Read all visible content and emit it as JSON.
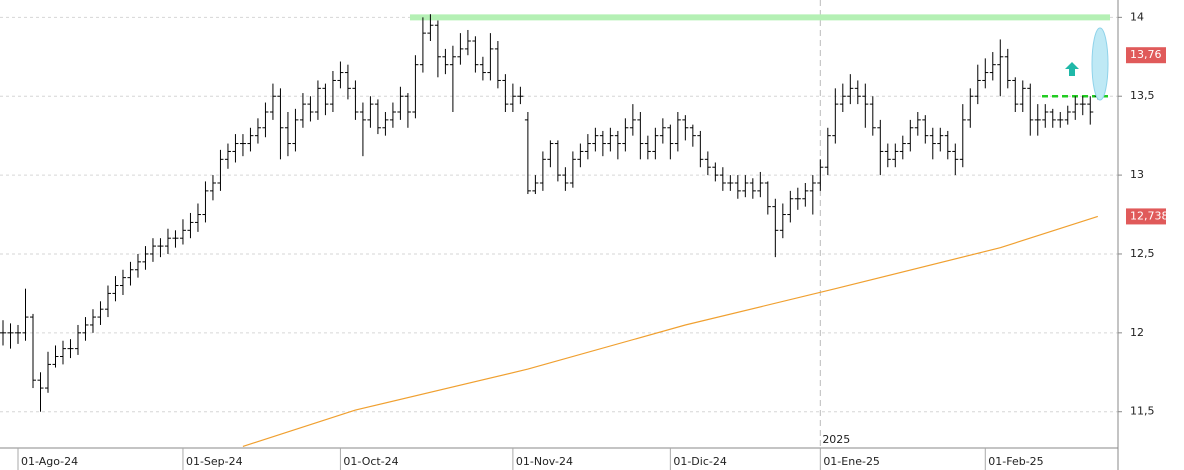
{
  "chart_data": {
    "type": "ohlc",
    "series": [
      {
        "color": "#000000",
        "values": [
          [
            12.0,
            12.08,
            11.92,
            12.0
          ],
          [
            12.0,
            12.06,
            11.9,
            12.0
          ],
          [
            12.0,
            12.05,
            11.93,
            12.0
          ],
          [
            12.0,
            12.28,
            11.95,
            12.1
          ],
          [
            12.1,
            12.12,
            11.65,
            11.7
          ],
          [
            11.7,
            11.75,
            11.5,
            11.65
          ],
          [
            11.65,
            11.88,
            11.62,
            11.8
          ],
          [
            11.8,
            11.92,
            11.78,
            11.85
          ],
          [
            11.85,
            11.95,
            11.8,
            11.9
          ],
          [
            11.9,
            11.96,
            11.84,
            11.9
          ],
          [
            11.9,
            12.05,
            11.86,
            12.0
          ],
          [
            12.0,
            12.1,
            11.95,
            12.05
          ],
          [
            12.05,
            12.15,
            12.0,
            12.1
          ],
          [
            12.1,
            12.2,
            12.05,
            12.15
          ],
          [
            12.15,
            12.3,
            12.1,
            12.25
          ],
          [
            12.25,
            12.36,
            12.2,
            12.3
          ],
          [
            12.3,
            12.4,
            12.24,
            12.35
          ],
          [
            12.35,
            12.45,
            12.3,
            12.4
          ],
          [
            12.4,
            12.5,
            12.35,
            12.45
          ],
          [
            12.45,
            12.55,
            12.4,
            12.5
          ],
          [
            12.5,
            12.6,
            12.45,
            12.55
          ],
          [
            12.55,
            12.6,
            12.48,
            12.55
          ],
          [
            12.55,
            12.66,
            12.5,
            12.6
          ],
          [
            12.6,
            12.65,
            12.54,
            12.6
          ],
          [
            12.6,
            12.72,
            12.56,
            12.65
          ],
          [
            12.65,
            12.76,
            12.6,
            12.7
          ],
          [
            12.7,
            12.82,
            12.64,
            12.75
          ],
          [
            12.75,
            12.96,
            12.7,
            12.9
          ],
          [
            12.9,
            13.0,
            12.84,
            12.95
          ],
          [
            12.95,
            13.16,
            12.9,
            13.1
          ],
          [
            13.1,
            13.2,
            13.04,
            13.15
          ],
          [
            13.15,
            13.26,
            13.08,
            13.2
          ],
          [
            13.2,
            13.26,
            13.12,
            13.2
          ],
          [
            13.2,
            13.3,
            13.15,
            13.25
          ],
          [
            13.25,
            13.36,
            13.2,
            13.3
          ],
          [
            13.3,
            13.46,
            13.24,
            13.4
          ],
          [
            13.4,
            13.58,
            13.35,
            13.5
          ],
          [
            13.5,
            13.55,
            13.1,
            13.3
          ],
          [
            13.3,
            13.4,
            13.12,
            13.2
          ],
          [
            13.2,
            13.42,
            13.15,
            13.35
          ],
          [
            13.35,
            13.52,
            13.3,
            13.45
          ],
          [
            13.45,
            13.5,
            13.34,
            13.4
          ],
          [
            13.4,
            13.6,
            13.35,
            13.55
          ],
          [
            13.55,
            13.58,
            13.38,
            13.45
          ],
          [
            13.45,
            13.66,
            13.4,
            13.6
          ],
          [
            13.6,
            13.72,
            13.55,
            13.65
          ],
          [
            13.65,
            13.7,
            13.48,
            13.55
          ],
          [
            13.55,
            13.6,
            13.35,
            13.4
          ],
          [
            13.4,
            13.46,
            13.12,
            13.35
          ],
          [
            13.35,
            13.5,
            13.3,
            13.45
          ],
          [
            13.45,
            13.48,
            13.26,
            13.3
          ],
          [
            13.3,
            13.4,
            13.25,
            13.35
          ],
          [
            13.35,
            13.46,
            13.3,
            13.4
          ],
          [
            13.4,
            13.56,
            13.35,
            13.5
          ],
          [
            13.5,
            13.52,
            13.3,
            13.4
          ],
          [
            13.4,
            13.76,
            13.36,
            13.7
          ],
          [
            13.7,
            14.0,
            13.65,
            13.9
          ],
          [
            13.9,
            14.02,
            13.85,
            13.95
          ],
          [
            13.95,
            13.98,
            13.62,
            13.75
          ],
          [
            13.75,
            13.8,
            13.64,
            13.7
          ],
          [
            13.7,
            13.82,
            13.4,
            13.75
          ],
          [
            13.75,
            13.9,
            13.7,
            13.8
          ],
          [
            13.8,
            13.92,
            13.76,
            13.85
          ],
          [
            13.85,
            13.88,
            13.65,
            13.7
          ],
          [
            13.7,
            13.75,
            13.6,
            13.65
          ],
          [
            13.65,
            13.9,
            13.6,
            13.8
          ],
          [
            13.8,
            13.85,
            13.55,
            13.6
          ],
          [
            13.6,
            13.64,
            13.4,
            13.45
          ],
          [
            13.45,
            13.58,
            13.4,
            13.5
          ],
          [
            13.5,
            13.56,
            13.45,
            13.5
          ],
          [
            13.35,
            13.4,
            12.88,
            12.9
          ],
          [
            12.9,
            13.0,
            12.88,
            12.95
          ],
          [
            12.95,
            13.15,
            12.9,
            13.1
          ],
          [
            13.1,
            13.22,
            13.05,
            13.2
          ],
          [
            13.2,
            13.22,
            12.96,
            13.0
          ],
          [
            13.0,
            13.05,
            12.9,
            12.95
          ],
          [
            12.95,
            13.15,
            12.92,
            13.1
          ],
          [
            13.1,
            13.2,
            13.05,
            13.15
          ],
          [
            13.15,
            13.26,
            13.1,
            13.2
          ],
          [
            13.2,
            13.3,
            13.15,
            13.25
          ],
          [
            13.25,
            13.28,
            13.12,
            13.2
          ],
          [
            13.2,
            13.3,
            13.15,
            13.25
          ],
          [
            13.25,
            13.28,
            13.1,
            13.2
          ],
          [
            13.2,
            13.36,
            13.15,
            13.3
          ],
          [
            13.3,
            13.45,
            13.25,
            13.35
          ],
          [
            13.35,
            13.4,
            13.1,
            13.2
          ],
          [
            13.2,
            13.25,
            13.1,
            13.15
          ],
          [
            13.15,
            13.3,
            13.1,
            13.25
          ],
          [
            13.25,
            13.36,
            13.2,
            13.3
          ],
          [
            13.3,
            13.32,
            13.1,
            13.2
          ],
          [
            13.2,
            13.4,
            13.15,
            13.35
          ],
          [
            13.35,
            13.38,
            13.22,
            13.3
          ],
          [
            13.3,
            13.32,
            13.18,
            13.25
          ],
          [
            13.25,
            13.28,
            13.05,
            13.1
          ],
          [
            13.1,
            13.15,
            13.0,
            13.05
          ],
          [
            13.05,
            13.08,
            12.96,
            13.0
          ],
          [
            13.0,
            13.05,
            12.9,
            12.95
          ],
          [
            12.95,
            13.0,
            12.9,
            12.95
          ],
          [
            12.95,
            13.0,
            12.85,
            12.9
          ],
          [
            12.9,
            13.0,
            12.86,
            12.95
          ],
          [
            12.95,
            12.98,
            12.85,
            12.9
          ],
          [
            12.9,
            13.02,
            12.86,
            12.95
          ],
          [
            12.95,
            12.96,
            12.75,
            12.8
          ],
          [
            12.8,
            12.85,
            12.48,
            12.65
          ],
          [
            12.65,
            12.82,
            12.6,
            12.75
          ],
          [
            12.75,
            12.9,
            12.7,
            12.85
          ],
          [
            12.85,
            12.92,
            12.78,
            12.85
          ],
          [
            12.85,
            12.95,
            12.8,
            12.9
          ],
          [
            12.9,
            13.0,
            12.75,
            12.95
          ],
          [
            12.95,
            13.1,
            12.9,
            13.05
          ],
          [
            13.05,
            13.3,
            13.0,
            13.25
          ],
          [
            13.25,
            13.55,
            13.2,
            13.45
          ],
          [
            13.45,
            13.58,
            13.4,
            13.5
          ],
          [
            13.5,
            13.64,
            13.45,
            13.55
          ],
          [
            13.55,
            13.6,
            13.45,
            13.5
          ],
          [
            13.5,
            13.58,
            13.3,
            13.45
          ],
          [
            13.45,
            13.5,
            13.25,
            13.3
          ],
          [
            13.3,
            13.35,
            13.0,
            13.15
          ],
          [
            13.15,
            13.2,
            13.05,
            13.1
          ],
          [
            13.1,
            13.2,
            13.05,
            13.15
          ],
          [
            13.15,
            13.25,
            13.1,
            13.2
          ],
          [
            13.2,
            13.35,
            13.15,
            13.3
          ],
          [
            13.3,
            13.4,
            13.25,
            13.35
          ],
          [
            13.35,
            13.38,
            13.2,
            13.25
          ],
          [
            13.25,
            13.3,
            13.1,
            13.2
          ],
          [
            13.2,
            13.3,
            13.15,
            13.25
          ],
          [
            13.25,
            13.28,
            13.1,
            13.15
          ],
          [
            13.15,
            13.2,
            13.0,
            13.1
          ],
          [
            13.1,
            13.45,
            13.05,
            13.35
          ],
          [
            13.35,
            13.55,
            13.3,
            13.5
          ],
          [
            13.5,
            13.7,
            13.45,
            13.6
          ],
          [
            13.6,
            13.74,
            13.55,
            13.65
          ],
          [
            13.65,
            13.78,
            13.6,
            13.7
          ],
          [
            13.7,
            13.86,
            13.5,
            13.75
          ],
          [
            13.75,
            13.8,
            13.55,
            13.6
          ],
          [
            13.6,
            13.62,
            13.4,
            13.45
          ],
          [
            13.45,
            13.6,
            13.4,
            13.55
          ],
          [
            13.55,
            13.58,
            13.25,
            13.35
          ],
          [
            13.35,
            13.45,
            13.25,
            13.35
          ],
          [
            13.35,
            13.45,
            13.3,
            13.4
          ],
          [
            13.4,
            13.42,
            13.3,
            13.35
          ],
          [
            13.35,
            13.4,
            13.3,
            13.35
          ],
          [
            13.35,
            13.44,
            13.32,
            13.4
          ],
          [
            13.4,
            13.5,
            13.35,
            13.45
          ],
          [
            13.45,
            13.5,
            13.38,
            13.45
          ],
          [
            13.45,
            13.5,
            13.32,
            13.4
          ],
          [
            13.5,
            13.85,
            13.48,
            13.76
          ]
        ]
      }
    ],
    "moving_average": {
      "color": "#f0a030",
      "x": [
        32,
        47,
        70,
        91,
        111,
        133,
        146
      ],
      "values": [
        11.28,
        11.51,
        11.77,
        12.05,
        12.28,
        12.54,
        12.738
      ]
    },
    "xlim": [
      -0.4,
      148.7
    ],
    "xticks": [
      {
        "value": 2,
        "label": "01-Ago-24"
      },
      {
        "value": 24,
        "label": "01-Sep-24"
      },
      {
        "value": 45,
        "label": "01-Oct-24"
      },
      {
        "value": 68,
        "label": "01-Nov-24"
      },
      {
        "value": 89,
        "label": "01-Dic-24"
      },
      {
        "value": 109,
        "label": "01-Ene-25"
      },
      {
        "value": 131,
        "label": "01-Feb-25"
      }
    ],
    "year_label": "2025",
    "ylim": [
      11.27,
      14.11
    ],
    "yticks": [
      {
        "value": 11.5,
        "label": "11,5"
      },
      12,
      {
        "value": 12.5,
        "label": "12,5"
      },
      13,
      {
        "value": 13.5,
        "label": "13,5"
      },
      14
    ],
    "grid": true,
    "levels": [
      {
        "value": 14,
        "color": "#b4f0b4",
        "style": "solid"
      },
      {
        "value": 13.5,
        "color": "#22cc22",
        "style": "dashed"
      }
    ],
    "price_tags": [
      {
        "value": 13.76,
        "label": "13,76"
      },
      {
        "value": 12.738,
        "label": "12,738"
      }
    ],
    "price_tag_color": "#e05a5a"
  }
}
